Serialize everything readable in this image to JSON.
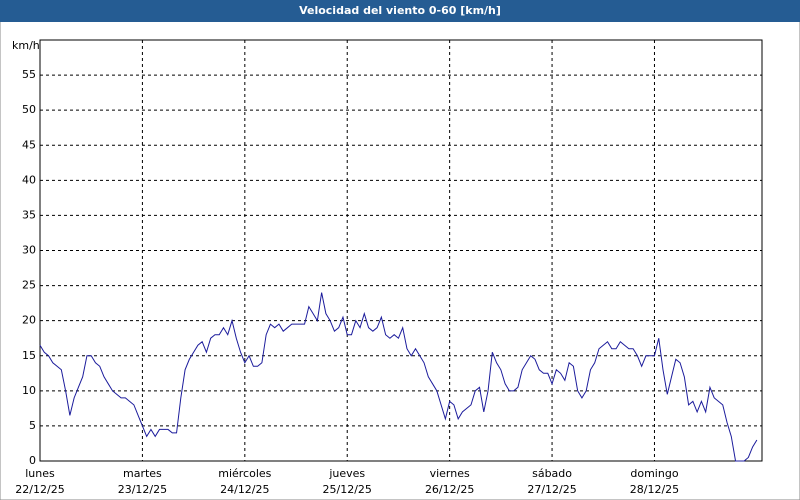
{
  "chart_data": {
    "type": "line",
    "title": "Velocidad del viento 0-60 [km/h]",
    "y_axis_label": "km/h",
    "color": "#1c1c9c",
    "grid": true,
    "xlim": [
      0,
      169.2
    ],
    "ylim": [
      0,
      60
    ],
    "yticks": [
      0,
      5,
      10,
      15,
      20,
      25,
      30,
      35,
      40,
      45,
      50,
      55
    ],
    "xticks": [
      {
        "value": 0,
        "label": "lunes",
        "date": "22/12/25"
      },
      {
        "value": 24,
        "label": "martes",
        "date": "23/12/25"
      },
      {
        "value": 48,
        "label": "miércoles",
        "date": "24/12/25"
      },
      {
        "value": 72,
        "label": "jueves",
        "date": "25/12/25"
      },
      {
        "value": 96,
        "label": "viernes",
        "date": "26/12/25"
      },
      {
        "value": 120,
        "label": "sábado",
        "date": "27/12/25"
      },
      {
        "value": 144,
        "label": "domingo",
        "date": "28/12/25"
      }
    ],
    "x": [
      0,
      1,
      2,
      3,
      4,
      5,
      6,
      7,
      8,
      9,
      10,
      11,
      12,
      13,
      14,
      15,
      16,
      17,
      18,
      19,
      20,
      21,
      22,
      23,
      24,
      25,
      26,
      27,
      28,
      29,
      30,
      31,
      32,
      33,
      34,
      35,
      36,
      37,
      38,
      39,
      40,
      41,
      42,
      43,
      44,
      45,
      46,
      47,
      48,
      49,
      50,
      51,
      52,
      53,
      54,
      55,
      56,
      57,
      58,
      59,
      60,
      61,
      62,
      63,
      64,
      65,
      66,
      67,
      68,
      69,
      70,
      71,
      72,
      73,
      74,
      75,
      76,
      77,
      78,
      79,
      80,
      81,
      82,
      83,
      84,
      85,
      86,
      87,
      88,
      89,
      90,
      91,
      92,
      93,
      94,
      95,
      96,
      97,
      98,
      99,
      100,
      101,
      102,
      103,
      104,
      105,
      106,
      107,
      108,
      109,
      110,
      111,
      112,
      113,
      114,
      115,
      116,
      117,
      118,
      119,
      120,
      121,
      122,
      123,
      124,
      125,
      126,
      127,
      128,
      129,
      130,
      131,
      132,
      133,
      134,
      135,
      136,
      137,
      138,
      139,
      140,
      141,
      142,
      143,
      144,
      145,
      146,
      147,
      148,
      149,
      150,
      151,
      152,
      153,
      154,
      155,
      156,
      157,
      158,
      159,
      160,
      161,
      162,
      163,
      164,
      165,
      166,
      167,
      168
    ],
    "values": [
      16.5,
      15.5,
      15,
      14,
      13.5,
      13,
      10,
      6.5,
      9,
      10.5,
      12,
      15,
      15,
      14,
      13.5,
      12,
      11,
      10,
      9.5,
      9,
      9,
      8.5,
      8,
      6.5,
      5,
      3.5,
      4.5,
      3.5,
      4.5,
      4.5,
      4.5,
      4,
      4,
      9,
      13,
      14.5,
      15.5,
      16.5,
      17,
      15.5,
      17.5,
      18,
      18,
      19,
      18,
      20,
      17.5,
      15.5,
      14,
      15,
      13.5,
      13.5,
      14,
      18,
      19.5,
      19,
      19.5,
      18.5,
      19,
      19.5,
      19.5,
      19.5,
      19.5,
      22,
      21,
      20,
      24,
      21,
      20,
      18.5,
      19,
      20.5,
      18,
      18,
      20,
      19,
      21,
      19,
      18.5,
      19,
      20.5,
      18,
      17.5,
      18,
      17.5,
      19,
      16,
      15,
      16,
      15,
      14,
      12,
      11,
      10,
      8,
      6,
      8.5,
      8,
      6,
      7,
      7.5,
      8,
      10,
      10.5,
      7,
      10,
      15.5,
      14,
      13,
      11,
      10,
      10,
      10.5,
      13,
      14,
      15,
      14.5,
      13,
      12.5,
      12.5,
      11,
      13,
      12.5,
      11.5,
      14,
      13.5,
      10,
      9,
      10,
      13,
      14,
      16,
      16.5,
      17,
      16,
      16,
      17,
      16.5,
      16,
      16,
      15,
      13.5,
      15,
      15,
      15,
      17.5,
      13,
      9.5,
      12,
      14.5,
      14,
      12,
      8,
      8.5,
      7,
      8.5,
      7,
      10.5,
      9,
      8.5,
      8,
      5.5,
      3.5,
      0,
      0,
      0,
      0.5,
      2,
      3
    ]
  }
}
